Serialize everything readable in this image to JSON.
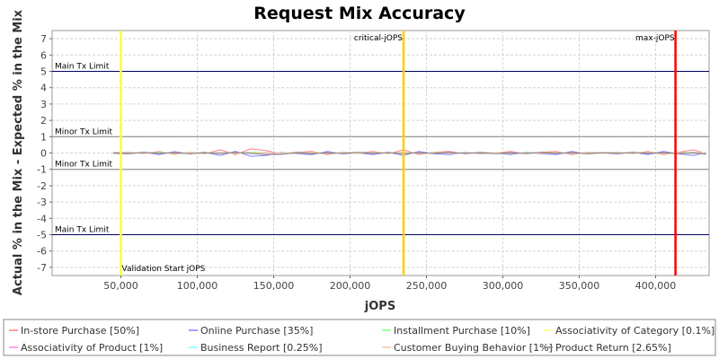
{
  "chart_data": {
    "type": "line",
    "title": "Request Mix Accuracy",
    "xlabel": "jOPS",
    "ylabel": "Actual % in the Mix - Expected % in the Mix",
    "xlim": [
      5000,
      435000
    ],
    "ylim": [
      -7.5,
      7.5
    ],
    "xticks": [
      50000,
      100000,
      150000,
      200000,
      250000,
      300000,
      350000,
      400000
    ],
    "xtick_labels": [
      "50,000",
      "100,000",
      "150,000",
      "200,000",
      "250,000",
      "300,000",
      "350,000",
      "400,000"
    ],
    "yticks": [
      7,
      6,
      5,
      4,
      3,
      2,
      1,
      0,
      -1,
      -2,
      -3,
      -4,
      -5,
      -6,
      -7
    ],
    "ytick_labels": [
      "7",
      "6",
      "5",
      "4",
      "3",
      "2",
      "1",
      "0",
      "-1",
      "-2",
      "-3",
      "-4",
      "-5",
      "-6",
      "-7"
    ],
    "grid": true,
    "legend_position": "bottom",
    "hlines": [
      {
        "y": 5,
        "label": "Main Tx Limit",
        "color": "#000066"
      },
      {
        "y": 1,
        "label": "Minor Tx Limit",
        "color": "#808080"
      },
      {
        "y": -1,
        "label": "Minor Tx Limit",
        "color": "#808080"
      },
      {
        "y": -5,
        "label": "Main Tx Limit",
        "color": "#000066"
      }
    ],
    "vlines": [
      {
        "x": 50000,
        "label": "Validation Start jOPS",
        "color": "#ffff33"
      },
      {
        "x": 235000,
        "label": "critical-jOPS",
        "color": "#ffcc00"
      },
      {
        "x": 413000,
        "label": "max-jOPS",
        "color": "#ff0000"
      }
    ],
    "x": [
      45000,
      55000,
      65000,
      75000,
      85000,
      95000,
      105000,
      115000,
      125000,
      135000,
      145000,
      155000,
      165000,
      175000,
      185000,
      195000,
      205000,
      215000,
      225000,
      235000,
      245000,
      255000,
      265000,
      275000,
      285000,
      295000,
      305000,
      315000,
      325000,
      335000,
      345000,
      355000,
      365000,
      375000,
      385000,
      395000,
      405000,
      415000,
      425000,
      433000
    ],
    "series": [
      {
        "name": "In-store Purchase [50%]",
        "color": "#ff8080",
        "values": [
          0.02,
          0.05,
          -0.05,
          0.1,
          -0.08,
          0.05,
          -0.05,
          0.2,
          -0.1,
          0.25,
          0.15,
          -0.05,
          0.05,
          0.1,
          -0.1,
          0.05,
          0.0,
          0.1,
          -0.05,
          0.2,
          -0.1,
          0.05,
          0.1,
          -0.05,
          0.05,
          0.0,
          0.1,
          -0.05,
          0.05,
          0.1,
          -0.1,
          0.05,
          0.0,
          0.05,
          -0.05,
          0.1,
          -0.1,
          0.05,
          0.2,
          -0.05
        ]
      },
      {
        "name": "Online Purchase [35%]",
        "color": "#8080ff",
        "values": [
          -0.02,
          -0.05,
          0.05,
          -0.1,
          0.08,
          -0.05,
          0.05,
          -0.15,
          0.1,
          -0.2,
          -0.15,
          0.05,
          -0.05,
          -0.1,
          0.1,
          -0.05,
          0.0,
          -0.1,
          0.05,
          -0.15,
          0.1,
          -0.05,
          -0.1,
          0.05,
          -0.05,
          0.0,
          -0.1,
          0.05,
          -0.05,
          -0.1,
          0.1,
          -0.05,
          0.0,
          -0.05,
          0.05,
          -0.1,
          0.1,
          -0.05,
          -0.15,
          0.05
        ]
      },
      {
        "name": "Installment Purchase [10%]",
        "color": "#80ff80",
        "values": [
          0.0,
          0.03,
          -0.02,
          0.05,
          -0.03,
          0.02,
          -0.02,
          0.04,
          -0.03,
          0.05,
          0.03,
          -0.02,
          0.02,
          0.03,
          -0.03,
          0.02,
          0.0,
          0.03,
          -0.02,
          0.04,
          -0.03,
          0.02,
          0.03,
          -0.02,
          0.02,
          0.0,
          0.03,
          -0.02,
          0.02,
          0.03,
          -0.03,
          0.02,
          0.0,
          0.02,
          -0.02,
          0.03,
          -0.03,
          0.02,
          0.04,
          -0.02
        ]
      },
      {
        "name": "Associativity of Category [0.1%]",
        "color": "#ffff80",
        "values": [
          0.0,
          0.0,
          0.01,
          0.0,
          -0.01,
          0.0,
          0.01,
          0.0,
          -0.01,
          0.0,
          0.01,
          0.0,
          -0.01,
          0.0,
          0.01,
          0.0,
          -0.01,
          0.0,
          0.01,
          0.0,
          -0.01,
          0.0,
          0.01,
          0.0,
          -0.01,
          0.0,
          0.01,
          0.0,
          -0.01,
          0.0,
          0.01,
          0.0,
          -0.01,
          0.0,
          0.01,
          0.0,
          -0.01,
          0.0,
          0.01,
          0.0
        ]
      },
      {
        "name": "Associativity of Product [1%]",
        "color": "#ff80ff",
        "values": [
          0.01,
          -0.02,
          0.02,
          -0.01,
          0.02,
          -0.02,
          0.01,
          -0.02,
          0.02,
          -0.01,
          0.02,
          -0.02,
          0.01,
          -0.02,
          0.02,
          -0.01,
          0.02,
          -0.02,
          0.01,
          -0.02,
          0.02,
          -0.01,
          0.02,
          -0.02,
          0.01,
          -0.02,
          0.02,
          -0.01,
          0.02,
          -0.02,
          0.01,
          -0.02,
          0.02,
          -0.01,
          0.02,
          -0.02,
          0.01,
          -0.02,
          0.02,
          -0.01
        ]
      },
      {
        "name": "Business Report [0.25%]",
        "color": "#80ffff",
        "values": [
          0.0,
          0.01,
          -0.01,
          0.02,
          -0.01,
          0.01,
          -0.01,
          0.02,
          -0.01,
          0.01,
          -0.02,
          0.01,
          -0.01,
          0.02,
          -0.01,
          0.01,
          -0.01,
          0.02,
          -0.01,
          0.01,
          -0.02,
          0.01,
          -0.01,
          0.02,
          -0.01,
          0.01,
          -0.01,
          0.02,
          -0.01,
          0.01,
          -0.02,
          0.01,
          -0.01,
          0.02,
          -0.01,
          0.01,
          -0.01,
          0.02,
          -0.01,
          0.01
        ]
      },
      {
        "name": "Customer Buying Behavior [1%]",
        "color": "#ffc0a0",
        "values": [
          -0.01,
          0.02,
          -0.02,
          0.01,
          -0.02,
          0.02,
          -0.01,
          0.02,
          -0.02,
          0.01,
          -0.02,
          0.02,
          -0.01,
          0.02,
          -0.02,
          0.01,
          -0.02,
          0.02,
          -0.01,
          0.02,
          -0.02,
          0.01,
          -0.02,
          0.02,
          -0.01,
          0.02,
          -0.02,
          0.01,
          -0.02,
          0.02,
          -0.01,
          0.02,
          -0.02,
          0.01,
          -0.02,
          0.02,
          -0.01,
          0.02,
          -0.02,
          0.01
        ]
      },
      {
        "name": "Product Return [2.65%]",
        "color": "#808080",
        "values": [
          0.01,
          -0.03,
          0.04,
          -0.02,
          0.03,
          -0.04,
          0.02,
          -0.03,
          0.04,
          -0.02,
          -0.1,
          -0.08,
          0.03,
          -0.04,
          0.02,
          -0.03,
          0.04,
          -0.02,
          0.03,
          -0.04,
          0.02,
          -0.03,
          0.04,
          -0.02,
          0.03,
          -0.04,
          0.02,
          -0.03,
          0.04,
          -0.02,
          0.03,
          -0.04,
          0.02,
          -0.03,
          0.04,
          -0.02,
          0.03,
          -0.04,
          0.02,
          -0.08
        ]
      }
    ]
  }
}
